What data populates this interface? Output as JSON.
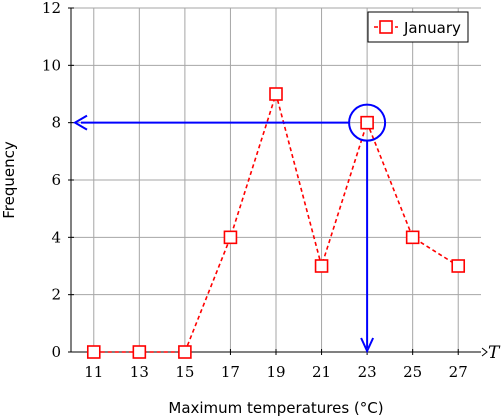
{
  "chart_data": {
    "type": "line",
    "xlabel": "Maximum temperatures (°C)",
    "ylabel": "Frequency",
    "x_axis_variable": "T",
    "x": [
      11,
      13,
      15,
      17,
      19,
      21,
      23,
      25,
      27
    ],
    "xlim": [
      10,
      28
    ],
    "ylim": [
      0,
      12
    ],
    "yticks": [
      0,
      2,
      4,
      6,
      8,
      10,
      12
    ],
    "grid": true,
    "legend_position": "top-right",
    "series": [
      {
        "name": "January",
        "values": [
          0,
          0,
          0,
          4,
          9,
          3,
          8,
          4,
          3
        ],
        "color": "#ff0000",
        "line_style": "dashed",
        "marker": "square"
      }
    ],
    "annotation": {
      "type": "highlight-point",
      "x": 23,
      "y": 8,
      "color": "#0000ff"
    }
  }
}
